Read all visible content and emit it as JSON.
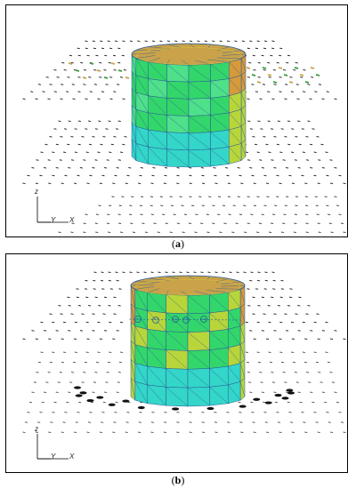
{
  "panels": [
    {
      "id": "a",
      "caption_open": "(",
      "caption_label": "a",
      "caption_close": ")",
      "axes": {
        "z": "z",
        "y": "Y",
        "x": "X"
      }
    },
    {
      "id": "b",
      "caption_open": "(",
      "caption_label": "b",
      "caption_close": ")",
      "axes": {
        "z": "z",
        "y": "Y",
        "x": "X"
      }
    }
  ],
  "colors": {
    "cylinder_green": "#33d66a",
    "cylinder_cyan": "#33d6c8",
    "cylinder_yellow": "#b8d63a",
    "cylinder_orange": "#d69a3a",
    "vector_dark": "#222222",
    "vector_green": "#3a9a3a"
  },
  "icons": [
    "axis-triad-icon"
  ]
}
